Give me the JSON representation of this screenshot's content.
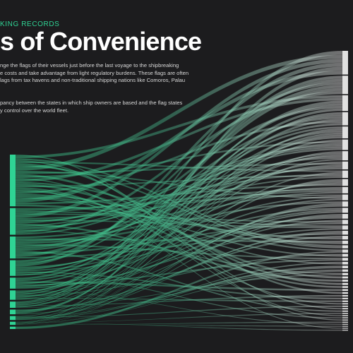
{
  "header": {
    "kicker": "KING RECORDS",
    "title": "s of Convenience",
    "intro_lines": [
      "nge the flags of their vessels just before the last voyage to the shipbreaking",
      "e costs and take advantage from light regulatory burdens. These flags are often",
      "lags from tax havens and non-traditional shipping nations like Comoros, Palau"
    ],
    "intro2_lines": [
      "pancy between the states in which ship owners are based and the flag states",
      "y control over the world fleet."
    ]
  },
  "colors": {
    "background": "#1c1c1e",
    "accent": "#2fd394",
    "flow_start": "#3ddc97",
    "flow_end": "#e6e6e6",
    "right_node": "#e0e0e0",
    "text": "#ffffff"
  },
  "chart_data": {
    "type": "sankey",
    "left_node_weights": [
      0.33,
      0.17,
      0.14,
      0.1,
      0.07,
      0.06,
      0.04,
      0.03,
      0.025,
      0.02,
      0.015
    ],
    "right_node_weights": [
      0.09,
      0.07,
      0.06,
      0.05,
      0.045,
      0.04,
      0.035,
      0.03,
      0.028,
      0.026,
      0.024,
      0.022,
      0.02,
      0.019,
      0.018,
      0.017,
      0.016,
      0.015,
      0.014,
      0.013,
      0.012,
      0.012,
      0.011,
      0.011,
      0.01,
      0.01,
      0.009,
      0.009,
      0.008,
      0.008,
      0.008,
      0.007,
      0.007,
      0.007,
      0.006,
      0.006,
      0.006,
      0.005,
      0.005,
      0.005,
      0.005,
      0.004,
      0.004,
      0.004,
      0.004,
      0.004,
      0.003,
      0.003,
      0.003,
      0.003
    ]
  }
}
